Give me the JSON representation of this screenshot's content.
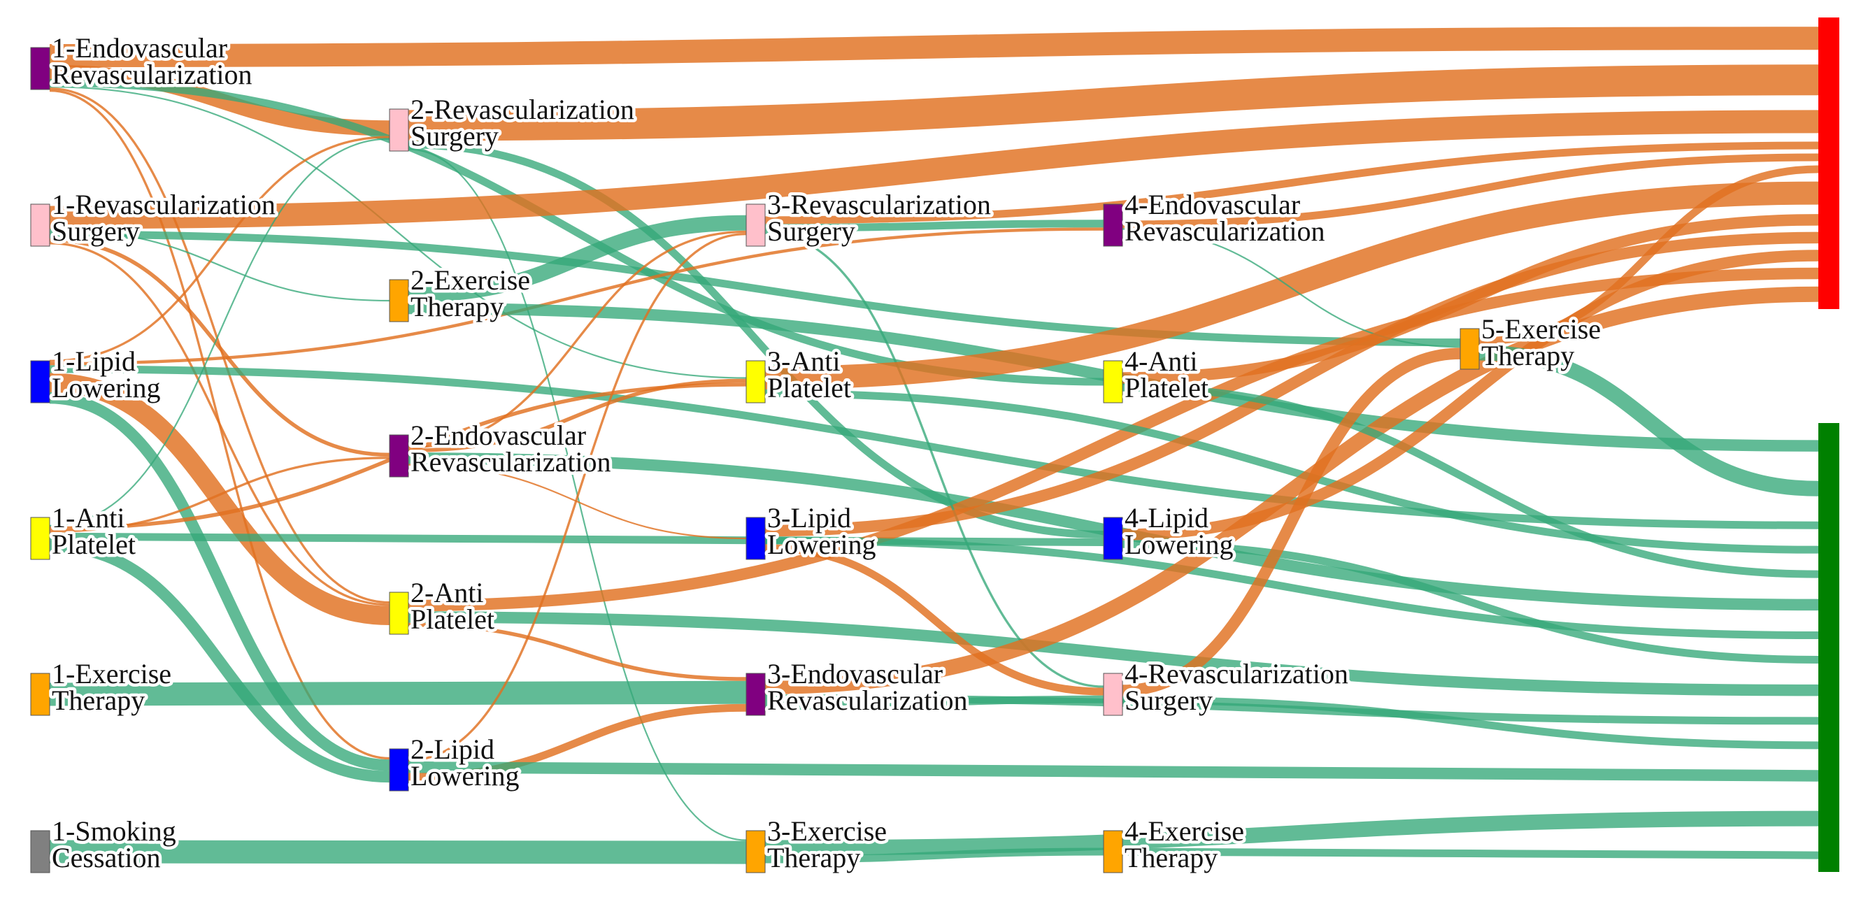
{
  "colors": {
    "orange_link": "#e07020",
    "teal_link": "#34a878",
    "purple": "#800080",
    "pink": "#ffc0cb",
    "orange_node": "#ffa500",
    "blue": "#0000ff",
    "yellow": "#ffff00",
    "gray": "#808080",
    "red": "#ff0000",
    "green": "#008000"
  },
  "nodes": [
    {
      "id": "1-endo",
      "col": 1,
      "lines": [
        "1-Endovascular",
        "Revascularization"
      ],
      "color": "purple"
    },
    {
      "id": "1-surg",
      "col": 1,
      "lines": [
        "1-Revascularization",
        "Surgery"
      ],
      "color": "pink"
    },
    {
      "id": "1-lipid",
      "col": 1,
      "lines": [
        "1-Lipid",
        "Lowering"
      ],
      "color": "blue"
    },
    {
      "id": "1-anti",
      "col": 1,
      "lines": [
        "1-Anti",
        "Platelet"
      ],
      "color": "yellow"
    },
    {
      "id": "1-ex",
      "col": 1,
      "lines": [
        "1-Exercise",
        "Therapy"
      ],
      "color": "orange_node"
    },
    {
      "id": "1-smoke",
      "col": 1,
      "lines": [
        "1-Smoking",
        "Cessation"
      ],
      "color": "gray"
    },
    {
      "id": "2-surg",
      "col": 2,
      "lines": [
        "2-Revascularization",
        "Surgery"
      ],
      "color": "pink"
    },
    {
      "id": "2-ex",
      "col": 2,
      "lines": [
        "2-Exercise",
        "Therapy"
      ],
      "color": "orange_node"
    },
    {
      "id": "2-endo",
      "col": 2,
      "lines": [
        "2-Endovascular",
        "Revascularization"
      ],
      "color": "purple"
    },
    {
      "id": "2-anti",
      "col": 2,
      "lines": [
        "2-Anti",
        "Platelet"
      ],
      "color": "yellow"
    },
    {
      "id": "2-lipid",
      "col": 2,
      "lines": [
        "2-Lipid",
        "Lowering"
      ],
      "color": "blue"
    },
    {
      "id": "3-surg",
      "col": 3,
      "lines": [
        "3-Revascularization",
        "Surgery"
      ],
      "color": "pink"
    },
    {
      "id": "3-anti",
      "col": 3,
      "lines": [
        "3-Anti",
        "Platelet"
      ],
      "color": "yellow"
    },
    {
      "id": "3-lipid",
      "col": 3,
      "lines": [
        "3-Lipid",
        "Lowering"
      ],
      "color": "blue"
    },
    {
      "id": "3-endo",
      "col": 3,
      "lines": [
        "3-Endovascular",
        "Revascularization"
      ],
      "color": "purple"
    },
    {
      "id": "3-ex",
      "col": 3,
      "lines": [
        "3-Exercise",
        "Therapy"
      ],
      "color": "orange_node"
    },
    {
      "id": "4-endo",
      "col": 4,
      "lines": [
        "4-Endovascular",
        "Revascularization"
      ],
      "color": "purple"
    },
    {
      "id": "4-anti",
      "col": 4,
      "lines": [
        "4-Anti",
        "Platelet"
      ],
      "color": "yellow"
    },
    {
      "id": "4-lipid",
      "col": 4,
      "lines": [
        "4-Lipid",
        "Lowering"
      ],
      "color": "blue"
    },
    {
      "id": "4-surg",
      "col": 4,
      "lines": [
        "4-Revascularization",
        "Surgery"
      ],
      "color": "pink"
    },
    {
      "id": "4-ex",
      "col": 4,
      "lines": [
        "4-Exercise",
        "Therapy"
      ],
      "color": "orange_node"
    },
    {
      "id": "5-ex",
      "col": 5,
      "lines": [
        "5-Exercise",
        "Therapy"
      ],
      "color": "orange_node"
    },
    {
      "id": "out-red",
      "col": 6,
      "lines": [],
      "color": "red"
    },
    {
      "id": "out-green",
      "col": 6,
      "lines": [],
      "color": "green"
    }
  ],
  "links": [
    {
      "source": "1-endo",
      "target": "out-red",
      "value": 3,
      "outcome": "orange"
    },
    {
      "source": "1-endo",
      "target": "2-surg",
      "value": 2,
      "outcome": "orange"
    },
    {
      "source": "1-endo",
      "target": "2-anti",
      "value": 0.3,
      "outcome": "orange"
    },
    {
      "source": "1-endo",
      "target": "2-lipid",
      "value": 0.3,
      "outcome": "orange"
    },
    {
      "source": "1-endo",
      "target": "4-anti",
      "value": 1,
      "outcome": "teal"
    },
    {
      "source": "1-endo",
      "target": "3-anti",
      "value": 0.2,
      "outcome": "teal"
    },
    {
      "source": "2-surg",
      "target": "out-red",
      "value": 4,
      "outcome": "orange"
    },
    {
      "source": "2-surg",
      "target": "4-lipid",
      "value": 1,
      "outcome": "teal"
    },
    {
      "source": "2-surg",
      "target": "3-ex",
      "value": 0.2,
      "outcome": "teal"
    },
    {
      "source": "1-surg",
      "target": "out-red",
      "value": 3,
      "outcome": "orange"
    },
    {
      "source": "1-surg",
      "target": "5-ex",
      "value": 1,
      "outcome": "teal"
    },
    {
      "source": "1-surg",
      "target": "2-ex",
      "value": 0.2,
      "outcome": "teal"
    },
    {
      "source": "1-surg",
      "target": "2-endo",
      "value": 0.5,
      "outcome": "orange"
    },
    {
      "source": "1-surg",
      "target": "2-anti",
      "value": 0.3,
      "outcome": "orange"
    },
    {
      "source": "1-lipid",
      "target": "2-anti",
      "value": 2.5,
      "outcome": "orange"
    },
    {
      "source": "1-lipid",
      "target": "2-lipid",
      "value": 1.5,
      "outcome": "teal"
    },
    {
      "source": "1-lipid",
      "target": "4-endo",
      "value": 0.4,
      "outcome": "orange"
    },
    {
      "source": "1-lipid",
      "target": "out-green",
      "value": 1,
      "outcome": "teal"
    },
    {
      "source": "1-lipid",
      "target": "2-surg",
      "value": 0.3,
      "outcome": "orange"
    },
    {
      "source": "1-anti",
      "target": "2-lipid",
      "value": 1.5,
      "outcome": "teal"
    },
    {
      "source": "1-anti",
      "target": "4-lipid",
      "value": 1,
      "outcome": "teal"
    },
    {
      "source": "1-anti",
      "target": "3-anti",
      "value": 0.5,
      "outcome": "orange"
    },
    {
      "source": "1-anti",
      "target": "2-endo",
      "value": 0.3,
      "outcome": "orange"
    },
    {
      "source": "1-anti",
      "target": "2-surg",
      "value": 0.2,
      "outcome": "teal"
    },
    {
      "source": "1-ex",
      "target": "3-endo",
      "value": 3,
      "outcome": "teal"
    },
    {
      "source": "1-smoke",
      "target": "3-ex",
      "value": 3,
      "outcome": "teal"
    },
    {
      "source": "2-ex",
      "target": "3-surg",
      "value": 2,
      "outcome": "teal"
    },
    {
      "source": "2-ex",
      "target": "out-green",
      "value": 1.5,
      "outcome": "teal"
    },
    {
      "source": "2-endo",
      "target": "3-surg",
      "value": 0.3,
      "outcome": "orange"
    },
    {
      "source": "2-endo",
      "target": "3-anti",
      "value": 0.5,
      "outcome": "orange"
    },
    {
      "source": "2-endo",
      "target": "out-green",
      "value": 1.5,
      "outcome": "teal"
    },
    {
      "source": "2-endo",
      "target": "3-lipid",
      "value": 0.2,
      "outcome": "orange"
    },
    {
      "source": "2-anti",
      "target": "out-green",
      "value": 1.5,
      "outcome": "teal"
    },
    {
      "source": "2-anti",
      "target": "3-endo",
      "value": 0.5,
      "outcome": "orange"
    },
    {
      "source": "2-anti",
      "target": "out-red",
      "value": 1.5,
      "outcome": "orange"
    },
    {
      "source": "2-lipid",
      "target": "3-endo",
      "value": 1,
      "outcome": "orange"
    },
    {
      "source": "2-lipid",
      "target": "out-green",
      "value": 1.5,
      "outcome": "teal"
    },
    {
      "source": "2-lipid",
      "target": "3-surg",
      "value": 0.3,
      "outcome": "orange"
    },
    {
      "source": "3-surg",
      "target": "4-endo",
      "value": 1,
      "outcome": "teal"
    },
    {
      "source": "3-surg",
      "target": "out-red",
      "value": 1,
      "outcome": "orange"
    },
    {
      "source": "3-surg",
      "target": "4-surg",
      "value": 0.3,
      "outcome": "teal"
    },
    {
      "source": "3-anti",
      "target": "out-red",
      "value": 3,
      "outcome": "orange"
    },
    {
      "source": "3-anti",
      "target": "out-green",
      "value": 1,
      "outcome": "teal"
    },
    {
      "source": "3-lipid",
      "target": "out-red",
      "value": 1.5,
      "outcome": "orange"
    },
    {
      "source": "3-lipid",
      "target": "4-surg",
      "value": 1,
      "outcome": "orange"
    },
    {
      "source": "3-lipid",
      "target": "out-green",
      "value": 1,
      "outcome": "teal"
    },
    {
      "source": "3-endo",
      "target": "out-red",
      "value": 2,
      "outcome": "orange"
    },
    {
      "source": "3-endo",
      "target": "4-surg",
      "value": 1,
      "outcome": "teal"
    },
    {
      "source": "3-endo",
      "target": "out-green",
      "value": 1,
      "outcome": "teal"
    },
    {
      "source": "3-ex",
      "target": "out-green",
      "value": 2,
      "outcome": "teal"
    },
    {
      "source": "3-ex",
      "target": "4-ex",
      "value": 1,
      "outcome": "teal"
    },
    {
      "source": "4-endo",
      "target": "out-red",
      "value": 1,
      "outcome": "orange"
    },
    {
      "source": "4-endo",
      "target": "5-ex",
      "value": 0.2,
      "outcome": "teal"
    },
    {
      "source": "4-anti",
      "target": "out-red",
      "value": 1.5,
      "outcome": "orange"
    },
    {
      "source": "4-anti",
      "target": "out-green",
      "value": 1,
      "outcome": "teal"
    },
    {
      "source": "4-lipid",
      "target": "out-red",
      "value": 1.5,
      "outcome": "orange"
    },
    {
      "source": "4-lipid",
      "target": "out-green",
      "value": 1,
      "outcome": "teal"
    },
    {
      "source": "4-surg",
      "target": "5-ex",
      "value": 1.5,
      "outcome": "orange"
    },
    {
      "source": "4-surg",
      "target": "out-green",
      "value": 1,
      "outcome": "teal"
    },
    {
      "source": "4-ex",
      "target": "out-green",
      "value": 1,
      "outcome": "teal"
    },
    {
      "source": "5-ex",
      "target": "out-red",
      "value": 1,
      "outcome": "orange"
    },
    {
      "source": "5-ex",
      "target": "out-green",
      "value": 2,
      "outcome": "teal"
    }
  ]
}
